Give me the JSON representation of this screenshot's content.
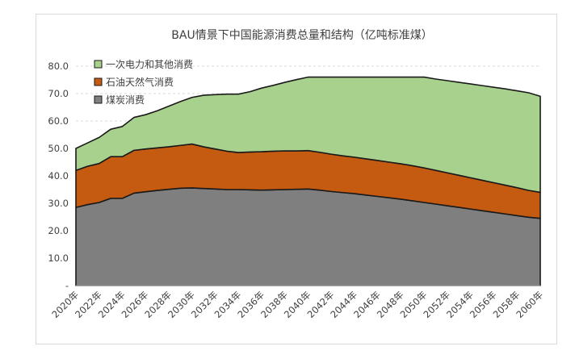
{
  "chart_data": {
    "type": "area",
    "stacked": true,
    "title": "BAU情景下中国能源消费总量和结构（亿吨标准煤）",
    "xlabel": "",
    "ylabel": "",
    "ylim": [
      0,
      80
    ],
    "y_ticks": [
      "-",
      "10.0",
      "20.0",
      "30.0",
      "40.0",
      "50.0",
      "60.0",
      "70.0",
      "80.0"
    ],
    "y_tick_values": [
      0,
      10,
      20,
      30,
      40,
      50,
      60,
      70,
      80
    ],
    "x_tick_labels": [
      "2020年",
      "2022年",
      "2024年",
      "2026年",
      "2028年",
      "2030年",
      "2032年",
      "2034年",
      "2036年",
      "2038年",
      "2040年",
      "2042年",
      "2044年",
      "2046年",
      "2048年",
      "2050年",
      "2052年",
      "2054年",
      "2056年",
      "2058年",
      "2060年"
    ],
    "x": [
      2020,
      2021,
      2022,
      2023,
      2024,
      2025,
      2026,
      2027,
      2028,
      2029,
      2030,
      2031,
      2032,
      2033,
      2034,
      2035,
      2036,
      2037,
      2038,
      2039,
      2040,
      2041,
      2042,
      2043,
      2044,
      2045,
      2046,
      2047,
      2048,
      2049,
      2050,
      2051,
      2052,
      2053,
      2054,
      2055,
      2056,
      2057,
      2058,
      2059,
      2060
    ],
    "xlim": [
      2020,
      2060
    ],
    "grid": "horizontal-dashed",
    "legend_position": "top-left",
    "series": [
      {
        "name": "煤炭消费",
        "color": "#7f7f7f",
        "values": [
          28.5,
          29.5,
          30.3,
          31.8,
          31.8,
          33.7,
          34.2,
          34.7,
          35.1,
          35.5,
          35.6,
          35.4,
          35.2,
          35.0,
          35.0,
          34.9,
          34.8,
          34.9,
          35.0,
          35.1,
          35.2,
          34.8,
          34.3,
          33.9,
          33.5,
          33.0,
          32.5,
          32.0,
          31.5,
          30.9,
          30.3,
          29.7,
          29.1,
          28.5,
          27.9,
          27.3,
          26.7,
          26.1,
          25.5,
          24.9,
          24.5
        ]
      },
      {
        "name": "石油天然气消费",
        "color": "#c55a11",
        "values": [
          13.5,
          14.0,
          14.2,
          15.2,
          15.2,
          15.6,
          15.6,
          15.5,
          15.5,
          15.6,
          16.0,
          15.2,
          14.6,
          14.0,
          13.5,
          13.8,
          14.0,
          14.1,
          14.1,
          14.0,
          14.0,
          13.8,
          13.6,
          13.4,
          13.3,
          13.2,
          13.1,
          13.0,
          12.9,
          12.8,
          12.6,
          12.3,
          12.0,
          11.7,
          11.4,
          11.1,
          10.8,
          10.5,
          10.2,
          9.8,
          9.5
        ]
      },
      {
        "name": "一次电力和其他消费",
        "color": "#a9d18e",
        "values": [
          8.0,
          8.5,
          9.5,
          10.0,
          11.0,
          12.0,
          12.5,
          13.5,
          14.8,
          16.0,
          17.0,
          18.8,
          19.8,
          20.8,
          21.3,
          22.0,
          23.2,
          24.0,
          25.0,
          26.0,
          26.8,
          27.4,
          28.1,
          28.7,
          29.2,
          29.8,
          30.4,
          31.0,
          31.6,
          32.3,
          33.1,
          33.3,
          33.6,
          33.9,
          34.2,
          34.5,
          34.8,
          35.1,
          35.3,
          35.6,
          35.0
        ]
      }
    ]
  }
}
